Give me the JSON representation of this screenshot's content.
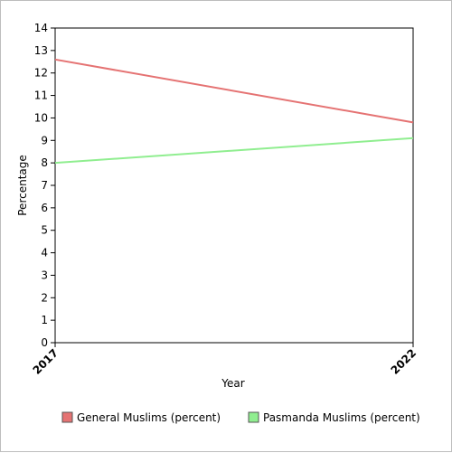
{
  "chart_data": {
    "type": "line",
    "title": "",
    "xlabel": "Year",
    "ylabel": "Percentage",
    "x": [
      "2017",
      "2022"
    ],
    "ylim": [
      0,
      14
    ],
    "yticks": [
      0,
      1,
      2,
      3,
      4,
      5,
      6,
      7,
      8,
      9,
      10,
      11,
      12,
      13,
      14
    ],
    "grid": false,
    "legend_position": "bottom",
    "series": [
      {
        "name": "General Muslims (percent)",
        "values": [
          12.6,
          9.8
        ],
        "color": "#e57373"
      },
      {
        "name": "Pasmanda Muslims (percent)",
        "values": [
          8.0,
          9.1
        ],
        "color": "#90ee90"
      }
    ]
  }
}
